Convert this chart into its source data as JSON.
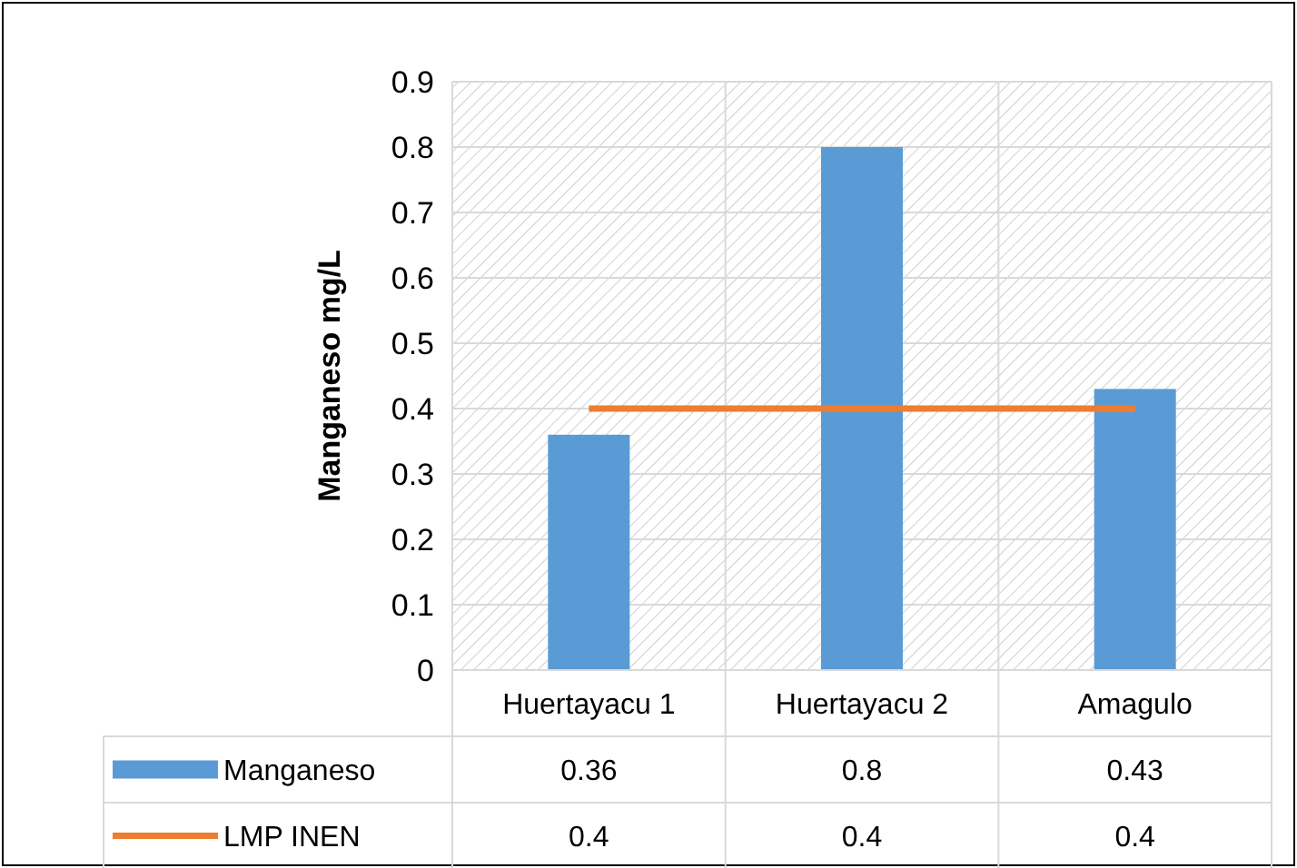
{
  "chart_data": {
    "type": "bar",
    "ylabel": "Manganeso mg/L",
    "categories": [
      "Huertayacu 1",
      "Huertayacu 2",
      "Amagulo"
    ],
    "series": [
      {
        "name": "Manganeso",
        "color": "#5b9bd5",
        "values": [
          0.36,
          0.8,
          0.43
        ]
      },
      {
        "name": "LMP INEN",
        "type": "line",
        "color": "#ed7d31",
        "values": [
          0.4,
          0.4,
          0.4
        ]
      }
    ],
    "ylim": [
      0,
      0.9
    ],
    "yticks": [
      0,
      0.1,
      0.2,
      0.3,
      0.4,
      0.5,
      0.6,
      0.7,
      0.8,
      0.9
    ],
    "grid": true,
    "data_labels": true,
    "legend": "bottom",
    "marker": "none"
  }
}
